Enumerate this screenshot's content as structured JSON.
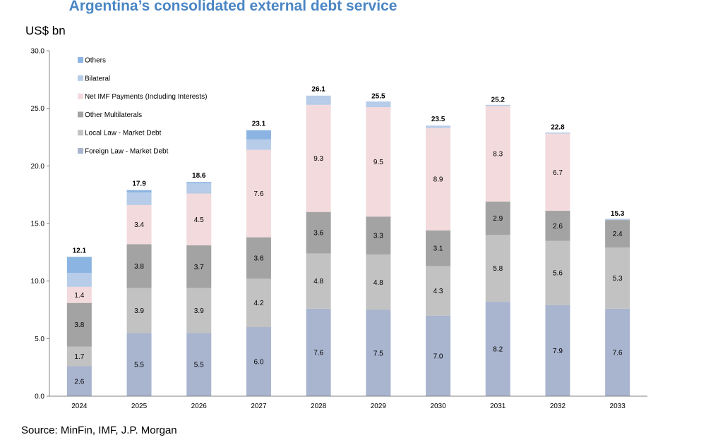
{
  "chart_data": {
    "type": "bar",
    "stacked": true,
    "title": "Argentina’s consolidated external debt service",
    "ylabel": "US$ bn",
    "xlabel": "",
    "ylim": [
      0,
      30
    ],
    "yticks": [
      "0.0",
      "5.0",
      "10.0",
      "15.0",
      "20.0",
      "25.0",
      "30.0"
    ],
    "grid": false,
    "legend_position": "top-left",
    "categories": [
      "2024",
      "2025",
      "2026",
      "2027",
      "2028",
      "2029",
      "2030",
      "2031",
      "2032",
      "2033"
    ],
    "series": [
      {
        "name": "Foreign Law - Market Debt",
        "color": "#a9b5cf",
        "values": [
          2.6,
          5.5,
          5.5,
          6.0,
          7.6,
          7.5,
          7.0,
          8.2,
          7.9,
          7.6
        ],
        "labels": [
          "2.6",
          "5.5",
          "5.5",
          "6.0",
          "7.6",
          "7.5",
          "7.0",
          "8.2",
          "7.9",
          "7.6"
        ]
      },
      {
        "name": "Local Law - Market Debt",
        "color": "#c2c2c2",
        "values": [
          1.7,
          3.9,
          3.9,
          4.2,
          4.8,
          4.8,
          4.3,
          5.8,
          5.6,
          5.3
        ],
        "labels": [
          "1.7",
          "3.9",
          "3.9",
          "4.2",
          "4.8",
          "4.8",
          "4.3",
          "5.8",
          "5.6",
          "5.3"
        ]
      },
      {
        "name": "Other Multilaterals",
        "color": "#a3a3a3",
        "values": [
          3.8,
          3.8,
          3.7,
          3.6,
          3.6,
          3.3,
          3.1,
          2.9,
          2.6,
          2.4
        ],
        "labels": [
          "3.8",
          "3.8",
          "3.7",
          "3.6",
          "3.6",
          "3.3",
          "3.1",
          "2.9",
          "2.6",
          "2.4"
        ]
      },
      {
        "name": "Net  IMF Payments (Including Interests)",
        "color": "#f3dadd",
        "values": [
          1.4,
          3.4,
          4.5,
          7.6,
          9.3,
          9.5,
          8.9,
          8.3,
          6.7,
          0.0
        ],
        "labels": [
          "1.4",
          "3.4",
          "4.5",
          "7.6",
          "9.3",
          "9.5",
          "8.9",
          "8.3",
          "6.7",
          ""
        ]
      },
      {
        "name": "Bilateral",
        "color": "#b6cce8",
        "values": [
          1.2,
          1.1,
          0.9,
          0.9,
          0.8,
          0.5,
          0.2,
          0.1,
          0.1,
          0.1
        ],
        "labels": [
          "",
          "",
          "",
          "",
          "",
          "",
          "",
          "",
          "",
          ""
        ]
      },
      {
        "name": "Others",
        "color": "#8bb4e2",
        "values": [
          1.4,
          0.2,
          0.1,
          0.8,
          0.0,
          0.0,
          0.0,
          0.0,
          0.0,
          0.0
        ],
        "labels": [
          "",
          "",
          "",
          "",
          "",
          "",
          "",
          "",
          "",
          ""
        ]
      }
    ],
    "totals": [
      12.1,
      17.9,
      18.6,
      23.1,
      26.1,
      25.5,
      23.5,
      25.2,
      22.8,
      15.3
    ],
    "total_labels": [
      "12.1",
      "17.9",
      "18.6",
      "23.1",
      "26.1",
      "25.5",
      "23.5",
      "25.2",
      "22.8",
      "15.3"
    ],
    "legend_order": [
      "Others",
      "Bilateral",
      "Net  IMF Payments (Including Interests)",
      "Other Multilaterals",
      "Local Law - Market Debt",
      "Foreign Law - Market Debt"
    ],
    "source": "Source: MinFin, IMF, J.P. Morgan"
  }
}
